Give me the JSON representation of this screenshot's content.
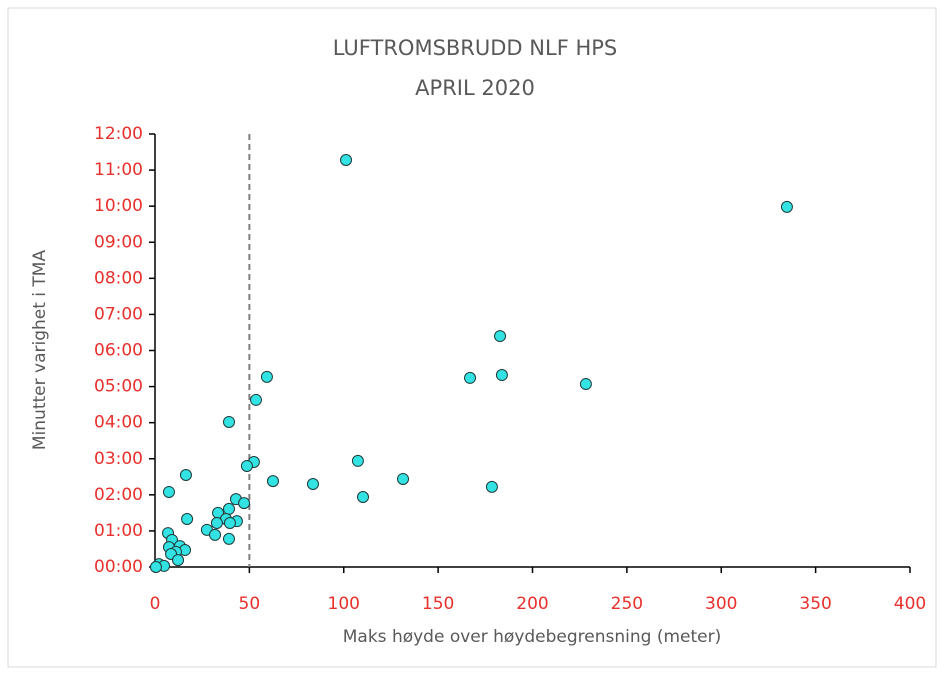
{
  "chart_data": {
    "type": "scatter",
    "title": [
      "LUFTROMSBRUDD NLF HPS",
      "APRIL 2020"
    ],
    "x_label": "Maks høyde over høydebegrensning (meter)",
    "y_label": "Minutter varighet i TMA",
    "x": [
      101.2,
      334.8,
      182.8,
      59.3,
      166.9,
      183.8,
      228.3,
      39.2,
      53.5,
      107.5,
      52.4,
      48.7,
      16.4,
      62.5,
      83.7,
      131.4,
      178.5,
      110.2,
      7.4,
      42.9,
      47.2,
      39.2,
      33.4,
      17.0,
      37.6,
      43.4,
      39.7,
      32.8,
      27.5,
      31.8,
      39.2,
      6.9,
      9.0,
      13.2,
      7.4,
      15.9,
      11.1,
      8.5,
      12.2,
      2.1,
      4.8,
      0.5
    ],
    "values": [
      11.28,
      9.98,
      6.4,
      5.27,
      5.24,
      5.32,
      5.07,
      4.02,
      4.63,
      2.94,
      2.91,
      2.8,
      2.55,
      2.38,
      2.3,
      2.44,
      2.22,
      1.94,
      2.08,
      1.88,
      1.77,
      1.61,
      1.5,
      1.33,
      1.33,
      1.27,
      1.22,
      1.22,
      1.03,
      0.89,
      0.78,
      0.94,
      0.75,
      0.58,
      0.55,
      0.47,
      0.42,
      0.36,
      0.19,
      0.08,
      0.03,
      0.0
    ],
    "color": "#33e3e3",
    "edge_color": "#1f3a3a",
    "tick_color": "#e8302c",
    "reference_line_x": 50,
    "xlim": [
      0,
      400
    ],
    "xticks": [
      0,
      50,
      100,
      150,
      200,
      250,
      300,
      350,
      400
    ],
    "ylim": [
      0,
      12
    ],
    "yticks": [
      {
        "value": 0,
        "label": "00:00"
      },
      {
        "value": 1,
        "label": "01:00"
      },
      {
        "value": 2,
        "label": "02:00"
      },
      {
        "value": 3,
        "label": "03:00"
      },
      {
        "value": 4,
        "label": "04:00"
      },
      {
        "value": 5,
        "label": "05:00"
      },
      {
        "value": 6,
        "label": "06:00"
      },
      {
        "value": 7,
        "label": "07:00"
      },
      {
        "value": 8,
        "label": "08:00"
      },
      {
        "value": 9,
        "label": "09:00"
      },
      {
        "value": 10,
        "label": "10:00"
      },
      {
        "value": 11,
        "label": "11:00"
      },
      {
        "value": 12,
        "label": "12:00"
      }
    ]
  }
}
